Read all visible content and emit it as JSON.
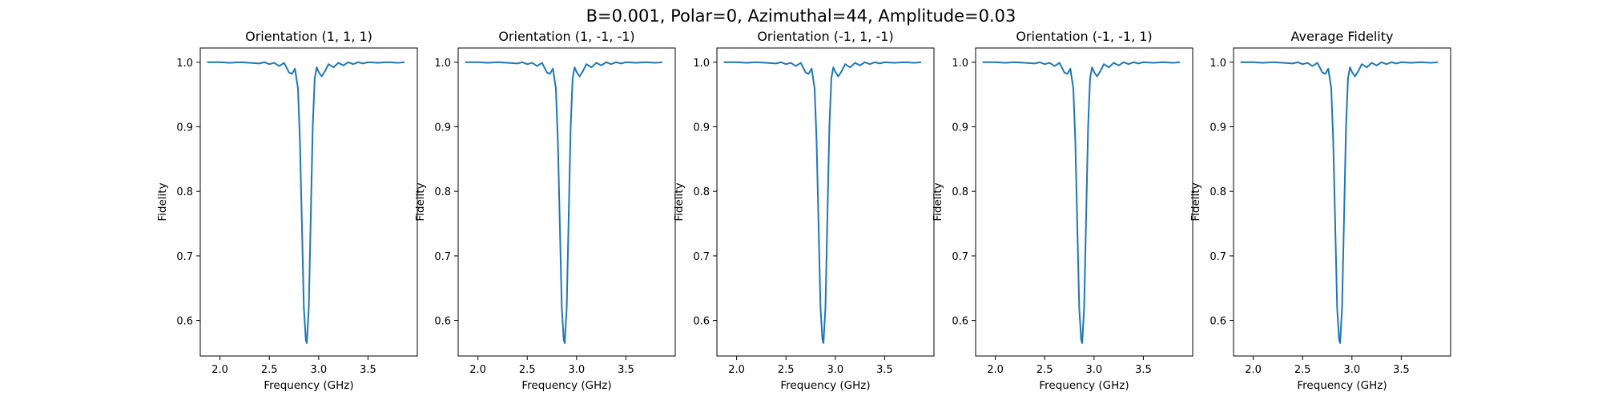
{
  "figure": {
    "suptitle": "B=0.001, Polar=0, Azimuthal=44, Amplitude=0.03"
  },
  "colors": {
    "line": "#1f77b4"
  },
  "chart_data": [
    {
      "type": "line",
      "title": "Orientation (1, 1, 1)",
      "xlabel": "Frequency (GHz)",
      "ylabel": "Fidelity",
      "xlim": [
        1.8,
        4.0
      ],
      "ylim": [
        0.545,
        1.022
      ],
      "xticks": [
        "2.0",
        "2.5",
        "3.0",
        "3.5"
      ],
      "yticks": [
        "0.6",
        "0.7",
        "0.8",
        "0.9",
        "1.0"
      ],
      "grid": false,
      "series": [
        {
          "x": [
            1.87,
            2.0,
            2.1,
            2.2,
            2.3,
            2.4,
            2.45,
            2.5,
            2.55,
            2.6,
            2.65,
            2.7,
            2.73,
            2.76,
            2.79,
            2.81,
            2.83,
            2.85,
            2.87,
            2.88,
            2.9,
            2.92,
            2.94,
            2.96,
            2.98,
            3.0,
            3.03,
            3.06,
            3.1,
            3.15,
            3.2,
            3.25,
            3.3,
            3.35,
            3.4,
            3.45,
            3.5,
            3.6,
            3.7,
            3.8,
            3.87
          ],
          "y": [
            1.0,
            1.0,
            0.999,
            1.0,
            0.999,
            0.998,
            1.0,
            0.997,
            0.999,
            0.994,
            0.999,
            0.984,
            0.982,
            0.99,
            0.96,
            0.88,
            0.75,
            0.62,
            0.57,
            0.565,
            0.62,
            0.76,
            0.9,
            0.975,
            0.992,
            0.985,
            0.978,
            0.985,
            0.997,
            0.992,
            0.999,
            0.995,
            1.0,
            0.997,
            1.0,
            0.998,
            1.0,
            0.999,
            1.0,
            0.999,
            1.0
          ]
        }
      ]
    },
    {
      "type": "line",
      "title": "Orientation (1, -1, -1)",
      "xlabel": "Frequency (GHz)",
      "ylabel": "Fidelity",
      "xlim": [
        1.8,
        4.0
      ],
      "ylim": [
        0.545,
        1.022
      ],
      "xticks": [
        "2.0",
        "2.5",
        "3.0",
        "3.5"
      ],
      "yticks": [
        "0.6",
        "0.7",
        "0.8",
        "0.9",
        "1.0"
      ],
      "grid": false,
      "series": [
        {
          "x": [
            1.87,
            2.0,
            2.1,
            2.2,
            2.3,
            2.4,
            2.45,
            2.5,
            2.55,
            2.6,
            2.65,
            2.7,
            2.73,
            2.76,
            2.79,
            2.81,
            2.83,
            2.85,
            2.87,
            2.88,
            2.9,
            2.92,
            2.94,
            2.96,
            2.98,
            3.0,
            3.03,
            3.06,
            3.1,
            3.15,
            3.2,
            3.25,
            3.3,
            3.35,
            3.4,
            3.45,
            3.5,
            3.6,
            3.7,
            3.8,
            3.87
          ],
          "y": [
            1.0,
            1.0,
            0.999,
            1.0,
            0.999,
            0.998,
            1.0,
            0.997,
            0.999,
            0.994,
            0.999,
            0.984,
            0.982,
            0.99,
            0.96,
            0.88,
            0.75,
            0.62,
            0.57,
            0.565,
            0.62,
            0.76,
            0.9,
            0.975,
            0.992,
            0.985,
            0.978,
            0.985,
            0.997,
            0.992,
            0.999,
            0.995,
            1.0,
            0.997,
            1.0,
            0.998,
            1.0,
            0.999,
            1.0,
            0.999,
            1.0
          ]
        }
      ]
    },
    {
      "type": "line",
      "title": "Orientation (-1, 1, -1)",
      "xlabel": "Frequency (GHz)",
      "ylabel": "Fidelity",
      "xlim": [
        1.8,
        4.0
      ],
      "ylim": [
        0.545,
        1.022
      ],
      "xticks": [
        "2.0",
        "2.5",
        "3.0",
        "3.5"
      ],
      "yticks": [
        "0.6",
        "0.7",
        "0.8",
        "0.9",
        "1.0"
      ],
      "grid": false,
      "series": [
        {
          "x": [
            1.87,
            2.0,
            2.1,
            2.2,
            2.3,
            2.4,
            2.45,
            2.5,
            2.55,
            2.6,
            2.65,
            2.7,
            2.73,
            2.76,
            2.79,
            2.81,
            2.83,
            2.85,
            2.87,
            2.88,
            2.9,
            2.92,
            2.94,
            2.96,
            2.98,
            3.0,
            3.03,
            3.06,
            3.1,
            3.15,
            3.2,
            3.25,
            3.3,
            3.35,
            3.4,
            3.45,
            3.5,
            3.6,
            3.7,
            3.8,
            3.87
          ],
          "y": [
            1.0,
            1.0,
            0.999,
            1.0,
            0.999,
            0.998,
            1.0,
            0.997,
            0.999,
            0.994,
            0.999,
            0.984,
            0.982,
            0.99,
            0.96,
            0.88,
            0.75,
            0.62,
            0.57,
            0.565,
            0.62,
            0.76,
            0.9,
            0.975,
            0.992,
            0.985,
            0.978,
            0.985,
            0.997,
            0.992,
            0.999,
            0.995,
            1.0,
            0.997,
            1.0,
            0.998,
            1.0,
            0.999,
            1.0,
            0.999,
            1.0
          ]
        }
      ]
    },
    {
      "type": "line",
      "title": "Orientation (-1, -1, 1)",
      "xlabel": "Frequency (GHz)",
      "ylabel": "Fidelity",
      "xlim": [
        1.8,
        4.0
      ],
      "ylim": [
        0.545,
        1.022
      ],
      "xticks": [
        "2.0",
        "2.5",
        "3.0",
        "3.5"
      ],
      "yticks": [
        "0.6",
        "0.7",
        "0.8",
        "0.9",
        "1.0"
      ],
      "grid": false,
      "series": [
        {
          "x": [
            1.87,
            2.0,
            2.1,
            2.2,
            2.3,
            2.4,
            2.45,
            2.5,
            2.55,
            2.6,
            2.65,
            2.7,
            2.73,
            2.76,
            2.79,
            2.81,
            2.83,
            2.85,
            2.87,
            2.88,
            2.9,
            2.92,
            2.94,
            2.96,
            2.98,
            3.0,
            3.03,
            3.06,
            3.1,
            3.15,
            3.2,
            3.25,
            3.3,
            3.35,
            3.4,
            3.45,
            3.5,
            3.6,
            3.7,
            3.8,
            3.87
          ],
          "y": [
            1.0,
            1.0,
            0.999,
            1.0,
            0.999,
            0.998,
            1.0,
            0.997,
            0.999,
            0.994,
            0.999,
            0.984,
            0.982,
            0.99,
            0.96,
            0.88,
            0.75,
            0.62,
            0.57,
            0.565,
            0.62,
            0.76,
            0.9,
            0.975,
            0.992,
            0.985,
            0.978,
            0.985,
            0.997,
            0.992,
            0.999,
            0.995,
            1.0,
            0.997,
            1.0,
            0.998,
            1.0,
            0.999,
            1.0,
            0.999,
            1.0
          ]
        }
      ]
    },
    {
      "type": "line",
      "title": "Average Fidelity",
      "xlabel": "Frequency (GHz)",
      "ylabel": "Fidelity",
      "xlim": [
        1.8,
        4.0
      ],
      "ylim": [
        0.545,
        1.022
      ],
      "xticks": [
        "2.0",
        "2.5",
        "3.0",
        "3.5"
      ],
      "yticks": [
        "0.6",
        "0.7",
        "0.8",
        "0.9",
        "1.0"
      ],
      "grid": false,
      "series": [
        {
          "x": [
            1.87,
            2.0,
            2.1,
            2.2,
            2.3,
            2.4,
            2.45,
            2.5,
            2.55,
            2.6,
            2.65,
            2.7,
            2.73,
            2.76,
            2.79,
            2.81,
            2.83,
            2.85,
            2.87,
            2.88,
            2.9,
            2.92,
            2.94,
            2.96,
            2.98,
            3.0,
            3.03,
            3.06,
            3.1,
            3.15,
            3.2,
            3.25,
            3.3,
            3.35,
            3.4,
            3.45,
            3.5,
            3.6,
            3.7,
            3.8,
            3.87
          ],
          "y": [
            1.0,
            1.0,
            0.999,
            1.0,
            0.999,
            0.998,
            1.0,
            0.997,
            0.999,
            0.994,
            0.999,
            0.984,
            0.982,
            0.99,
            0.96,
            0.88,
            0.75,
            0.62,
            0.57,
            0.565,
            0.62,
            0.76,
            0.9,
            0.975,
            0.992,
            0.985,
            0.978,
            0.985,
            0.997,
            0.992,
            0.999,
            0.995,
            1.0,
            0.997,
            1.0,
            0.998,
            1.0,
            0.999,
            1.0,
            0.999,
            1.0
          ]
        }
      ]
    }
  ]
}
